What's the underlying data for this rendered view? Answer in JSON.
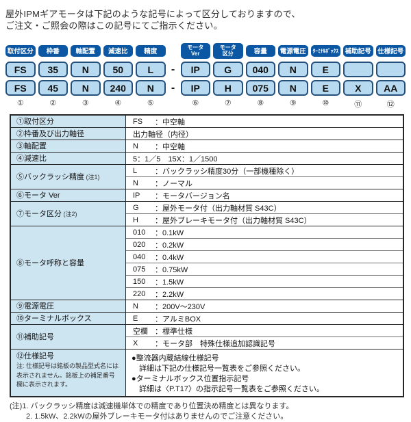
{
  "title": {
    "line1": "屋外IPMギアモータは下記のような記号によって区分しておりますので、",
    "line2": "ご注文・ご照会の際はこの記号にてご指示ください。"
  },
  "colors": {
    "badge_blue": "#0b57a4",
    "cell_blue": "#b7daf0",
    "cell_border": "#25507c",
    "label_column_blue": "#cde4f1",
    "table_border": "#262626"
  },
  "code_diagram": {
    "separator": "-",
    "columns": [
      {
        "num": "①",
        "header_lines": [
          "取付区分"
        ],
        "row1": "FS",
        "row2": "FS"
      },
      {
        "num": "②",
        "header_lines": [
          "枠番"
        ],
        "row1": "35",
        "row2": "45"
      },
      {
        "num": "③",
        "header_lines": [
          "軸配置"
        ],
        "row1": "N",
        "row2": "N"
      },
      {
        "num": "④",
        "header_lines": [
          "減速比"
        ],
        "row1": "50",
        "row2": "240"
      },
      {
        "num": "⑤",
        "header_lines": [
          "精度"
        ],
        "row1": "L",
        "row2": "N"
      },
      {
        "num": "⑥",
        "header_lines": [
          "モータ",
          "Ver"
        ],
        "row1": "IP",
        "row2": "IP"
      },
      {
        "num": "⑦",
        "header_lines": [
          "モータ",
          "区分"
        ],
        "row1": "G",
        "row2": "H"
      },
      {
        "num": "⑧",
        "header_lines": [
          "容量"
        ],
        "row1": "040",
        "row2": "075"
      },
      {
        "num": "⑨",
        "header_lines": [
          "電源電圧"
        ],
        "row1": "N",
        "row2": "N"
      },
      {
        "num": "⑩",
        "header_lines": [
          "ﾀｰﾐﾅﾙﾎﾞｯｸｽ"
        ],
        "row1": "E",
        "row2": "E"
      },
      {
        "num": "⑪",
        "header_lines": [
          "補助記号"
        ],
        "row1": "",
        "row2": "X"
      },
      {
        "num": "⑫",
        "header_lines": [
          "仕様記号"
        ],
        "row1": "",
        "row2": "AA"
      }
    ]
  },
  "spec_table": {
    "rows": [
      {
        "num": "①",
        "label": "取付区分",
        "entries": [
          {
            "code": "FS",
            "desc": "：中空軸"
          }
        ]
      },
      {
        "num": "②",
        "label": "枠番及び出力軸径",
        "entries": [
          {
            "code": "",
            "desc": "出力軸径（内径）"
          }
        ]
      },
      {
        "num": "③",
        "label": "軸配置",
        "entries": [
          {
            "code": "N",
            "desc": "：中空軸"
          }
        ]
      },
      {
        "num": "④",
        "label": "減速比",
        "entries": [
          {
            "code": "",
            "desc": "5：1／5　15X：1／1500"
          }
        ]
      },
      {
        "num": "⑤",
        "label": "バックラッシ精度",
        "label_note": "(注1)",
        "entries": [
          {
            "code": "L",
            "desc": "：バックラッシ精度30分（一部機種除く）"
          },
          {
            "code": "N",
            "desc": "：ノーマル"
          }
        ]
      },
      {
        "num": "⑥",
        "label": "モータ Ver",
        "entries": [
          {
            "code": "IP",
            "desc": "：モータバージョン名"
          }
        ]
      },
      {
        "num": "⑦",
        "label": "モータ区分",
        "label_note": "(注2)",
        "entries": [
          {
            "code": "G",
            "desc": "：屋外モータ付（出力軸材質 S43C）"
          },
          {
            "code": "H",
            "desc": "：屋外ブレーキモータ付（出力軸材質 S43C）"
          }
        ]
      },
      {
        "num": "⑧",
        "label": "モータ呼称と容量",
        "entries": [
          {
            "code": "010",
            "desc": "：0.1kW"
          },
          {
            "code": "020",
            "desc": "：0.2kW"
          },
          {
            "code": "040",
            "desc": "：0.4kW"
          },
          {
            "code": "075",
            "desc": "：0.75kW"
          },
          {
            "code": "150",
            "desc": "：1.5kW"
          },
          {
            "code": "220",
            "desc": "：2.2kW"
          }
        ]
      },
      {
        "num": "⑨",
        "label": "電源電圧",
        "entries": [
          {
            "code": "N",
            "desc": "：200V～230V"
          }
        ]
      },
      {
        "num": "⑩",
        "label": "ターミナルボックス",
        "entries": [
          {
            "code": "E",
            "desc": "：アルミBOX"
          }
        ]
      },
      {
        "num": "⑪",
        "label": "補助記号",
        "entries": [
          {
            "code": "空欄",
            "desc": "：標準仕様"
          },
          {
            "code": "X",
            "desc": "：モータ部　特殊仕様追加認識記号"
          }
        ]
      },
      {
        "num": "⑫",
        "label": "仕様記号",
        "label_block_note": [
          "注: 仕様記号は銘板の製品型式名には",
          "表示されません。銘板上の補足番号",
          "欄に表示されます。"
        ],
        "entries_plain": [
          "●整流器内蔵結線仕様記号",
          "　詳細は下記の仕様記号一覧表をご参照ください。",
          "●ターミナルボックス位置指示記号",
          "　詳細は〈P.T17〉の指示記号一覧表をご参照ください。"
        ]
      }
    ]
  },
  "footer_notes": [
    "(注)1. バックラッシ精度は減速機単体での精度であり位置決め精度とは異なります。",
    "2. 1.5kW、2.2kWの屋外ブレーキモータ付はありませんのでご注意ください。"
  ]
}
